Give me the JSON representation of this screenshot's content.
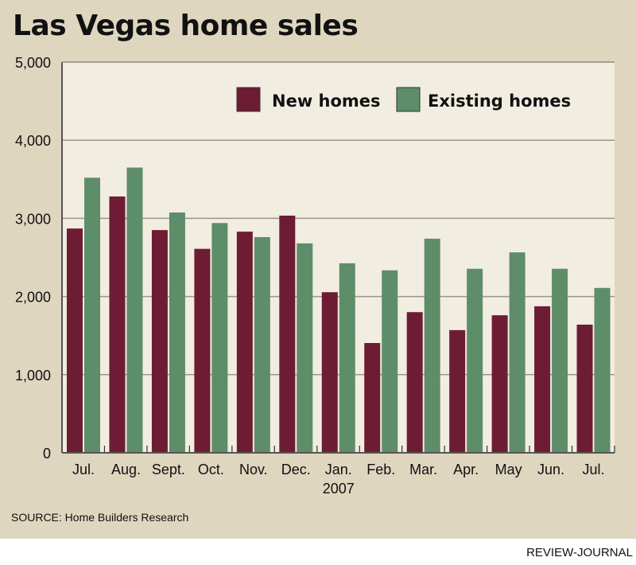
{
  "chart_data": {
    "type": "bar",
    "title": "Las Vegas home sales",
    "xlabel": "",
    "ylabel": "",
    "ylim": [
      0,
      5000
    ],
    "yticks": [
      0,
      1000,
      2000,
      3000,
      4000,
      5000
    ],
    "ytick_labels": [
      "0",
      "1,000",
      "2,000",
      "3,000",
      "4,000",
      "5,000"
    ],
    "categories": [
      "Jul.",
      "Aug.",
      "Sept.",
      "Oct.",
      "Nov.",
      "Dec.",
      "Jan.",
      "Feb.",
      "Mar.",
      "Apr.",
      "May",
      "Jun.",
      "Jul."
    ],
    "category_sublabels": [
      "",
      "",
      "",
      "",
      "",
      "",
      "2007",
      "",
      "",
      "",
      "",
      "",
      ""
    ],
    "series": [
      {
        "name": "New homes",
        "color": "#6e1c34",
        "values": [
          2870,
          3280,
          2850,
          2610,
          2830,
          3035,
          2055,
          1405,
          1800,
          1570,
          1760,
          1875,
          1640
        ]
      },
      {
        "name": "Existing homes",
        "color": "#5e8d69",
        "values": [
          3520,
          3650,
          3075,
          2940,
          2760,
          2680,
          2425,
          2335,
          2740,
          2355,
          2565,
          2355,
          2110
        ]
      }
    ],
    "grid": true,
    "legend_position": "top-right"
  },
  "footer": {
    "source": "SOURCE: Home Builders Research",
    "credit": "REVIEW-JOURNAL"
  },
  "colors": {
    "panel_bg": "#dfd6bf",
    "plot_bg": "#f2ede1",
    "grid": "#9a968c",
    "axis": "#555555"
  }
}
